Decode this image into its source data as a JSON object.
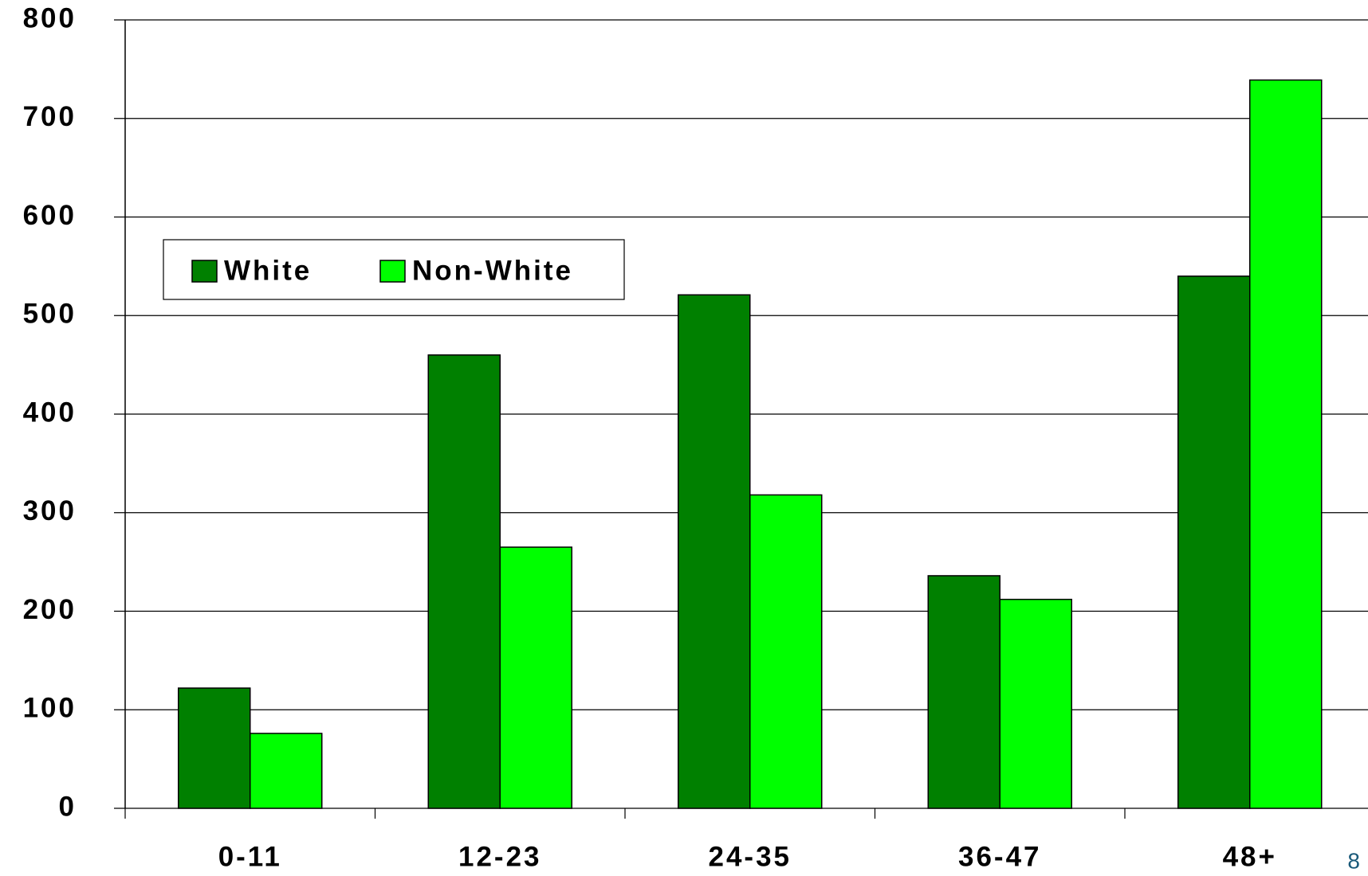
{
  "chart_data": {
    "type": "bar",
    "categories": [
      "0-11",
      "12-23",
      "24-35",
      "36-47",
      "48+"
    ],
    "series": [
      {
        "name": "White",
        "color": "#008000",
        "values": [
          122,
          460,
          521,
          236,
          540
        ]
      },
      {
        "name": "Non-White",
        "color": "#00ff00",
        "values": [
          76,
          265,
          318,
          212,
          739
        ]
      }
    ],
    "ylim": [
      0,
      800
    ],
    "yticks": [
      0,
      100,
      200,
      300,
      400,
      500,
      600,
      700,
      800
    ],
    "grid": true,
    "legend": "upper left"
  },
  "page_number": "8"
}
